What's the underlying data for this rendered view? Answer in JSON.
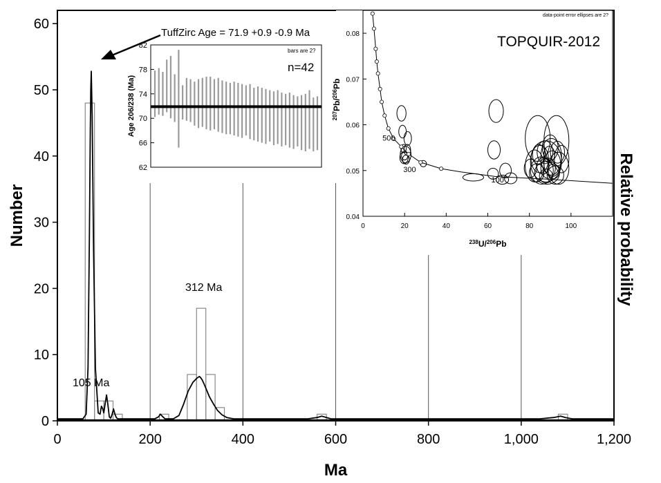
{
  "chart_data": [
    {
      "type": "bar",
      "xlabel": "Ma",
      "ylabel": "Number",
      "y2label": "Relative probability",
      "xlim": [
        0,
        1200
      ],
      "ylim": [
        0,
        62
      ],
      "x_ticks": [
        0,
        200,
        400,
        600,
        800,
        1000,
        1200
      ],
      "x_tick_labels": [
        "0",
        "200",
        "400",
        "600",
        "800",
        "1,000",
        "1,200"
      ],
      "y_ticks": [
        0,
        10,
        20,
        30,
        40,
        50,
        60
      ],
      "y_tick_labels": [
        "0",
        "10",
        "20",
        "30",
        "40",
        "50",
        "60"
      ],
      "bin_width": 20,
      "bins": [
        {
          "start": 60,
          "count": 48
        },
        {
          "start": 80,
          "count": 3
        },
        {
          "start": 100,
          "count": 3
        },
        {
          "start": 120,
          "count": 1
        },
        {
          "start": 220,
          "count": 1
        },
        {
          "start": 280,
          "count": 7
        },
        {
          "start": 300,
          "count": 17
        },
        {
          "start": 320,
          "count": 7
        },
        {
          "start": 340,
          "count": 2
        },
        {
          "start": 560,
          "count": 1
        },
        {
          "start": 1080,
          "count": 1
        }
      ],
      "probability_curve": {
        "x": [
          0,
          55,
          62,
          66,
          69,
          71,
          72,
          73,
          75,
          78,
          82,
          88,
          92,
          95,
          98,
          100,
          103,
          106,
          109,
          112,
          115,
          118,
          121,
          124,
          127,
          130,
          140,
          180,
          210,
          218,
          222,
          226,
          232,
          250,
          262,
          272,
          282,
          292,
          300,
          306,
          309,
          312,
          316,
          322,
          328,
          336,
          345,
          355,
          365,
          380,
          420,
          540,
          560,
          570,
          580,
          590,
          620,
          1040,
          1070,
          1085,
          1095,
          1110,
          1200
        ],
        "y": [
          0.3,
          0.3,
          1.0,
          8.0,
          28.0,
          44.0,
          50.0,
          52.8,
          46.0,
          26.0,
          8.0,
          1.2,
          1.0,
          2.2,
          1.8,
          1.2,
          2.6,
          3.9,
          2.4,
          0.6,
          0.4,
          1.0,
          1.8,
          1.0,
          0.5,
          0.3,
          0.3,
          0.3,
          0.3,
          0.6,
          1.0,
          0.7,
          0.3,
          0.3,
          0.8,
          2.5,
          4.5,
          5.8,
          6.4,
          6.7,
          6.5,
          6.2,
          5.6,
          4.6,
          3.6,
          2.6,
          1.6,
          0.9,
          0.5,
          0.3,
          0.3,
          0.3,
          0.5,
          0.7,
          0.5,
          0.3,
          0.3,
          0.3,
          0.5,
          0.7,
          0.5,
          0.3,
          0.3
        ]
      },
      "vertical_lines": [
        200,
        400,
        600,
        800,
        1000
      ],
      "annotations": [
        {
          "text": "105 Ma",
          "x": 105,
          "y": 5.5
        },
        {
          "text": "312 Ma",
          "x": 312,
          "y": 19.5
        },
        {
          "text": "TuffZirc Age  = 71.9   +0.9   -0.9  Ma",
          "arrow_to": [
            72,
            55
          ]
        }
      ]
    },
    {
      "type": "errorbar",
      "ylabel": "Age  206/238 (Ma)",
      "ylim": [
        62,
        82
      ],
      "y_ticks": [
        62,
        66,
        70,
        74,
        78,
        82
      ],
      "y_tick_labels": [
        "62",
        "66",
        "70",
        "74",
        "78",
        "82"
      ],
      "note": "bars are 2?",
      "n_label": "n=42",
      "mean_age": 71.9,
      "bars": [
        {
          "low": 70.2,
          "high": 77.8
        },
        {
          "low": 70.6,
          "high": 78.2
        },
        {
          "low": 70.4,
          "high": 77.6
        },
        {
          "low": 71.0,
          "high": 79.6
        },
        {
          "low": 70.0,
          "high": 80.2
        },
        {
          "low": 69.4,
          "high": 77.2
        },
        {
          "low": 65.2,
          "high": 81.2
        },
        {
          "low": 69.8,
          "high": 75.4
        },
        {
          "low": 69.6,
          "high": 76.6
        },
        {
          "low": 69.4,
          "high": 76.4
        },
        {
          "low": 68.8,
          "high": 76.0
        },
        {
          "low": 68.4,
          "high": 76.4
        },
        {
          "low": 68.6,
          "high": 76.6
        },
        {
          "low": 68.2,
          "high": 76.8
        },
        {
          "low": 68.0,
          "high": 76.8
        },
        {
          "low": 68.2,
          "high": 76.4
        },
        {
          "low": 67.8,
          "high": 76.6
        },
        {
          "low": 67.6,
          "high": 76.2
        },
        {
          "low": 67.4,
          "high": 76.0
        },
        {
          "low": 67.4,
          "high": 75.8
        },
        {
          "low": 67.2,
          "high": 76.0
        },
        {
          "low": 67.0,
          "high": 75.8
        },
        {
          "low": 66.8,
          "high": 75.6
        },
        {
          "low": 67.2,
          "high": 75.4
        },
        {
          "low": 66.6,
          "high": 75.6
        },
        {
          "low": 66.4,
          "high": 75.0
        },
        {
          "low": 66.2,
          "high": 75.2
        },
        {
          "low": 66.0,
          "high": 75.0
        },
        {
          "low": 65.8,
          "high": 74.8
        },
        {
          "low": 66.2,
          "high": 74.6
        },
        {
          "low": 65.6,
          "high": 74.4
        },
        {
          "low": 65.8,
          "high": 74.6
        },
        {
          "low": 65.4,
          "high": 74.2
        },
        {
          "low": 65.6,
          "high": 74.0
        },
        {
          "low": 65.2,
          "high": 74.2
        },
        {
          "low": 65.0,
          "high": 73.8
        },
        {
          "low": 65.4,
          "high": 73.6
        },
        {
          "low": 64.8,
          "high": 73.8
        },
        {
          "low": 64.6,
          "high": 74.0
        },
        {
          "low": 65.0,
          "high": 74.6
        },
        {
          "low": 64.6,
          "high": 73.4
        },
        {
          "low": 64.8,
          "high": 73.6
        }
      ]
    },
    {
      "type": "scatter",
      "title": "TOPQUIR-2012",
      "note": "data-point error ellipses are 2?",
      "xlim": [
        0,
        120
      ],
      "ylim": [
        0.04,
        0.085
      ],
      "x_ticks": [
        0,
        20,
        40,
        60,
        80,
        100
      ],
      "x_tick_labels": [
        "0",
        "20",
        "40",
        "60",
        "80",
        "100"
      ],
      "y_ticks": [
        0.04,
        0.05,
        0.06,
        0.07,
        0.08
      ],
      "y_tick_labels": [
        "0.04",
        "0.05",
        "0.06",
        "0.07",
        "0.08"
      ],
      "xlabel_parts": [
        {
          "text": "238",
          "sup": true
        },
        {
          "text": "U/",
          "sup": false
        },
        {
          "text": "206",
          "sup": true
        },
        {
          "text": "Pb",
          "sup": false
        }
      ],
      "ylabel_parts": [
        {
          "text": "207",
          "sup": true
        },
        {
          "text": "Pb/",
          "sup": false
        },
        {
          "text": "206",
          "sup": true
        },
        {
          "text": "Pb",
          "sup": false
        }
      ],
      "concordia": {
        "x": [
          4.6,
          5.3,
          6.1,
          6.6,
          7.2,
          8.2,
          9.0,
          10.4,
          12.2,
          14.8,
          18.4,
          21.9,
          27.7,
          37.6,
          47.0,
          63.5,
          89.0,
          120.0
        ],
        "y": [
          0.0843,
          0.081,
          0.0766,
          0.0738,
          0.0712,
          0.0678,
          0.065,
          0.062,
          0.0592,
          0.0569,
          0.0552,
          0.0536,
          0.0518,
          0.0504,
          0.0497,
          0.0487,
          0.0481,
          0.0472
        ]
      },
      "concordia_points": {
        "x": [
          4.6,
          5.3,
          6.1,
          6.6,
          7.2,
          8.2,
          9.0,
          10.4,
          12.2,
          14.8,
          18.4,
          21.9,
          27.7,
          37.6
        ],
        "y": [
          0.0843,
          0.081,
          0.0766,
          0.0738,
          0.0712,
          0.0678,
          0.065,
          0.062,
          0.0592,
          0.0569,
          0.0552,
          0.0536,
          0.0518,
          0.0504
        ]
      },
      "age_labels": [
        {
          "text": "500",
          "x": 12.4,
          "y": 0.0565
        },
        {
          "text": "300",
          "x": 22.4,
          "y": 0.0497
        },
        {
          "text": "100",
          "x": 64.7,
          "y": 0.0474
        }
      ],
      "ellipses": [
        {
          "x": 18.5,
          "y": 0.0625,
          "rx": 2.2,
          "ry": 0.0017
        },
        {
          "x": 19.0,
          "y": 0.0585,
          "rx": 1.8,
          "ry": 0.0014
        },
        {
          "x": 21.5,
          "y": 0.057,
          "rx": 1.8,
          "ry": 0.0015
        },
        {
          "x": 20.5,
          "y": 0.0535,
          "rx": 2.6,
          "ry": 0.0018
        },
        {
          "x": 19.7,
          "y": 0.0528,
          "rx": 2.0,
          "ry": 0.0013
        },
        {
          "x": 20.7,
          "y": 0.0524,
          "rx": 1.7,
          "ry": 0.001
        },
        {
          "x": 20.0,
          "y": 0.0532,
          "rx": 1.5,
          "ry": 0.0009
        },
        {
          "x": 21.3,
          "y": 0.0545,
          "rx": 1.6,
          "ry": 0.0012
        },
        {
          "x": 19.5,
          "y": 0.0548,
          "rx": 1.3,
          "ry": 0.0009
        },
        {
          "x": 29.0,
          "y": 0.0515,
          "rx": 1.5,
          "ry": 0.0007
        },
        {
          "x": 53.0,
          "y": 0.0485,
          "rx": 5.0,
          "ry": 0.0008
        },
        {
          "x": 64.0,
          "y": 0.063,
          "rx": 3.5,
          "ry": 0.0025
        },
        {
          "x": 63.0,
          "y": 0.0545,
          "rx": 3.0,
          "ry": 0.002
        },
        {
          "x": 62.5,
          "y": 0.0493,
          "rx": 2.6,
          "ry": 0.0012
        },
        {
          "x": 67.0,
          "y": 0.048,
          "rx": 3.0,
          "ry": 0.001
        },
        {
          "x": 71.0,
          "y": 0.0483,
          "rx": 3.0,
          "ry": 0.0012
        },
        {
          "x": 68.5,
          "y": 0.05,
          "rx": 2.8,
          "ry": 0.0016
        },
        {
          "x": 84.0,
          "y": 0.057,
          "rx": 6.0,
          "ry": 0.005
        },
        {
          "x": 93.0,
          "y": 0.0565,
          "rx": 6.0,
          "ry": 0.0055
        },
        {
          "x": 88.0,
          "y": 0.052,
          "rx": 7.5,
          "ry": 0.0045
        },
        {
          "x": 82.5,
          "y": 0.051,
          "rx": 4.5,
          "ry": 0.0035
        },
        {
          "x": 90.5,
          "y": 0.053,
          "rx": 5.0,
          "ry": 0.004
        },
        {
          "x": 86.0,
          "y": 0.05,
          "rx": 5.5,
          "ry": 0.003
        },
        {
          "x": 94.0,
          "y": 0.0505,
          "rx": 5.0,
          "ry": 0.0035
        },
        {
          "x": 88.5,
          "y": 0.0495,
          "rx": 6.0,
          "ry": 0.0025
        },
        {
          "x": 91.0,
          "y": 0.0515,
          "rx": 4.0,
          "ry": 0.0028
        },
        {
          "x": 85.0,
          "y": 0.0525,
          "rx": 4.2,
          "ry": 0.003
        },
        {
          "x": 87.5,
          "y": 0.054,
          "rx": 3.8,
          "ry": 0.0025
        },
        {
          "x": 92.5,
          "y": 0.049,
          "rx": 4.0,
          "ry": 0.002
        },
        {
          "x": 89.0,
          "y": 0.0505,
          "rx": 3.5,
          "ry": 0.0022
        },
        {
          "x": 83.5,
          "y": 0.0495,
          "rx": 3.5,
          "ry": 0.002
        },
        {
          "x": 95.5,
          "y": 0.0525,
          "rx": 3.5,
          "ry": 0.003
        },
        {
          "x": 90.0,
          "y": 0.055,
          "rx": 3.8,
          "ry": 0.0028
        },
        {
          "x": 86.5,
          "y": 0.051,
          "rx": 3.0,
          "ry": 0.0018
        },
        {
          "x": 88.0,
          "y": 0.0488,
          "rx": 3.2,
          "ry": 0.0015
        },
        {
          "x": 91.5,
          "y": 0.0498,
          "rx": 3.0,
          "ry": 0.0016
        },
        {
          "x": 84.5,
          "y": 0.0535,
          "rx": 3.0,
          "ry": 0.0022
        },
        {
          "x": 93.5,
          "y": 0.054,
          "rx": 3.4,
          "ry": 0.0024
        },
        {
          "x": 80.5,
          "y": 0.0505,
          "rx": 3.0,
          "ry": 0.002
        },
        {
          "x": 89.5,
          "y": 0.0535,
          "rx": 2.6,
          "ry": 0.0018
        }
      ]
    }
  ]
}
